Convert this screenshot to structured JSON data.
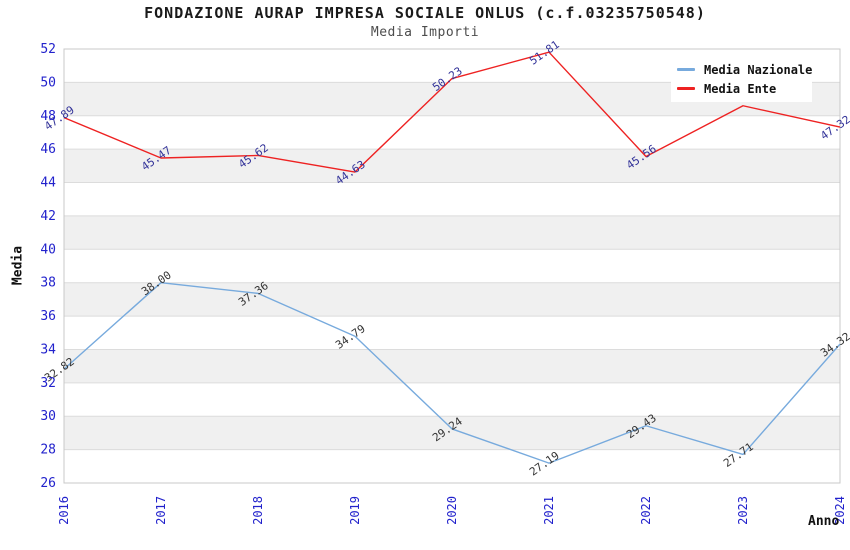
{
  "page": {
    "title": "FONDAZIONE AURAP IMPRESA SOCIALE ONLUS (c.f.03235750548)",
    "subtitle": "Media Importi"
  },
  "legend": {
    "items": [
      {
        "label": "Media Nazionale",
        "color": "#77aadd"
      },
      {
        "label": "Media Ente",
        "color": "#ee2222"
      }
    ]
  },
  "chart_data": {
    "type": "line",
    "title": "FONDAZIONE AURAP IMPRESA SOCIALE ONLUS (c.f.03235750548)",
    "subtitle": "Media Importi",
    "xlabel": "Anno",
    "ylabel": "Media",
    "categories": [
      "2016",
      "2017",
      "2018",
      "2019",
      "2020",
      "2021",
      "2022",
      "2023",
      "2024"
    ],
    "ylim": [
      26,
      52
    ],
    "ytick_step": 2,
    "grid": "horizontal-only",
    "legend_position": "top-right-inside",
    "series": [
      {
        "name": "Media Nazionale",
        "color": "#77aadd",
        "label_color": "#333333",
        "values": [
          32.82,
          38.0,
          37.36,
          34.79,
          29.24,
          27.19,
          29.43,
          27.71,
          34.32
        ],
        "labels": [
          "32.82",
          "38.00",
          "37.36",
          "34.79",
          "29.24",
          "27.19",
          "29.43",
          "27.71",
          "34.32"
        ]
      },
      {
        "name": "Media Ente",
        "color": "#ee2222",
        "label_color": "#333399",
        "values": [
          47.89,
          45.47,
          45.62,
          44.63,
          50.23,
          51.81,
          45.56,
          48.6,
          47.32
        ],
        "labels": [
          "47.89",
          "45.47",
          "45.62",
          "44.63",
          "50.23",
          "51.81",
          "45.56",
          null,
          "47.32"
        ],
        "note": "2023 point label hidden behind legend box"
      }
    ],
    "colors": {
      "tick_labels": "#2222cc",
      "band_fill": "#f0f0f0",
      "gridline": "#dcdcdc",
      "plot_border": "#c8c8c8",
      "background": "#ffffff"
    }
  }
}
